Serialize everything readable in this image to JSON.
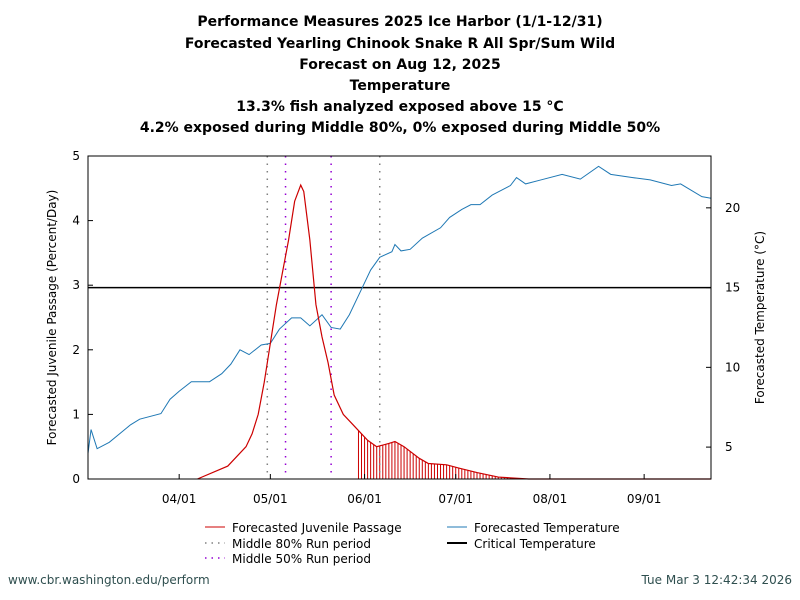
{
  "titles": [
    "Performance Measures 2025 Ice Harbor (1/1-12/31)",
    "Forecasted Yearling Chinook Snake R All Spr/Sum Wild",
    "Forecast on Aug 12, 2025",
    "Temperature",
    "13.3% fish analyzed exposed above 15 °C",
    "4.2% exposed during Middle 80%, 0% exposed during Middle 50%"
  ],
  "footer": {
    "left": "www.cbr.washington.edu/perform",
    "right": "Tue Mar  3 12:42:34 2026"
  },
  "chart_data": {
    "type": "line",
    "x_range": [
      "03-02",
      "09-23"
    ],
    "x_ticks": [
      [
        "04-01",
        "04/01"
      ],
      [
        "05-01",
        "05/01"
      ],
      [
        "06-01",
        "06/01"
      ],
      [
        "07-01",
        "07/01"
      ],
      [
        "08-01",
        "08/01"
      ],
      [
        "09-01",
        "09/01"
      ]
    ],
    "ylabel": "Forecasted Juvenile Passage (Percent/Day)",
    "ylim": [
      0,
      5
    ],
    "yticks": [
      0,
      1,
      2,
      3,
      4,
      5
    ],
    "y2label": "Forecasted Temperature (°C)",
    "y2lim": [
      3,
      23.25
    ],
    "y2ticks": [
      5,
      10,
      15,
      20
    ],
    "colors": {
      "passage": "#cc0000",
      "temperature": "#1f78b4",
      "critical": "#000000",
      "run80": "#808080",
      "run50": "#9400d3"
    },
    "series": [
      {
        "name": "Forecasted Juvenile Passage",
        "axis": "left",
        "points": [
          [
            "04-07",
            0
          ],
          [
            "04-17",
            0.2
          ],
          [
            "04-23",
            0.5
          ],
          [
            "04-25",
            0.7
          ],
          [
            "04-27",
            1.0
          ],
          [
            "04-29",
            1.5
          ],
          [
            "05-01",
            2.1
          ],
          [
            "05-03",
            2.7
          ],
          [
            "05-05",
            3.2
          ],
          [
            "05-07",
            3.7
          ],
          [
            "05-09",
            4.3
          ],
          [
            "05-11",
            4.55
          ],
          [
            "05-12",
            4.45
          ],
          [
            "05-14",
            3.7
          ],
          [
            "05-16",
            2.7
          ],
          [
            "05-18",
            2.2
          ],
          [
            "05-20",
            1.8
          ],
          [
            "05-22",
            1.3
          ],
          [
            "05-25",
            1.0
          ],
          [
            "05-28",
            0.85
          ],
          [
            "05-30",
            0.75
          ],
          [
            "06-02",
            0.6
          ],
          [
            "06-05",
            0.5
          ],
          [
            "06-09",
            0.55
          ],
          [
            "06-11",
            0.58
          ],
          [
            "06-14",
            0.5
          ],
          [
            "06-19",
            0.32
          ],
          [
            "06-22",
            0.24
          ],
          [
            "06-28",
            0.22
          ],
          [
            "07-02",
            0.17
          ],
          [
            "07-08",
            0.1
          ],
          [
            "07-15",
            0.03
          ],
          [
            "07-25",
            0
          ],
          [
            "09-23",
            0
          ]
        ]
      },
      {
        "name": "Forecasted Temperature",
        "axis": "right",
        "points": [
          [
            "03-02",
            4.6
          ],
          [
            "03-03",
            6.1
          ],
          [
            "03-05",
            4.9
          ],
          [
            "03-09",
            5.3
          ],
          [
            "03-16",
            6.4
          ],
          [
            "03-19",
            6.75
          ],
          [
            "03-26",
            7.1
          ],
          [
            "03-29",
            8.0
          ],
          [
            "04-01",
            8.5
          ],
          [
            "04-05",
            9.1
          ],
          [
            "04-11",
            9.1
          ],
          [
            "04-15",
            9.6
          ],
          [
            "04-18",
            10.2
          ],
          [
            "04-21",
            11.1
          ],
          [
            "04-24",
            10.8
          ],
          [
            "04-28",
            11.4
          ],
          [
            "05-01",
            11.5
          ],
          [
            "05-04",
            12.4
          ],
          [
            "05-08",
            13.1
          ],
          [
            "05-11",
            13.1
          ],
          [
            "05-14",
            12.6
          ],
          [
            "05-18",
            13.3
          ],
          [
            "05-21",
            12.5
          ],
          [
            "05-24",
            12.4
          ],
          [
            "05-27",
            13.3
          ],
          [
            "05-31",
            14.9
          ],
          [
            "06-03",
            16.1
          ],
          [
            "06-06",
            16.9
          ],
          [
            "06-10",
            17.25
          ],
          [
            "06-11",
            17.7
          ],
          [
            "06-13",
            17.3
          ],
          [
            "06-16",
            17.4
          ],
          [
            "06-20",
            18.1
          ],
          [
            "06-26",
            18.75
          ],
          [
            "06-29",
            19.4
          ],
          [
            "07-03",
            19.9
          ],
          [
            "07-06",
            20.2
          ],
          [
            "07-09",
            20.2
          ],
          [
            "07-13",
            20.8
          ],
          [
            "07-16",
            21.1
          ],
          [
            "07-19",
            21.4
          ],
          [
            "07-21",
            21.9
          ],
          [
            "07-24",
            21.5
          ],
          [
            "07-29",
            21.75
          ],
          [
            "08-05",
            22.1
          ],
          [
            "08-11",
            21.8
          ],
          [
            "08-17",
            22.6
          ],
          [
            "08-21",
            22.1
          ],
          [
            "08-28",
            21.9
          ],
          [
            "09-03",
            21.75
          ],
          [
            "09-10",
            21.4
          ],
          [
            "09-13",
            21.5
          ],
          [
            "09-20",
            20.7
          ],
          [
            "09-23",
            20.6
          ]
        ]
      }
    ],
    "critical_temperature": {
      "name": "Critical Temperature",
      "value": 15
    },
    "exposed_period_start": "05-30",
    "run_periods": [
      {
        "name": "Middle 80% Run period",
        "dates": [
          "04-30",
          "06-06"
        ]
      },
      {
        "name": "Middle 50% Run period",
        "dates": [
          "05-06",
          "05-21"
        ]
      }
    ],
    "legend": {
      "placement": "bottom",
      "entries": [
        "Forecasted Juvenile Passage",
        "Middle 80% Run period",
        "Middle 50% Run period",
        "Forecasted Temperature",
        "Critical Temperature"
      ]
    }
  }
}
